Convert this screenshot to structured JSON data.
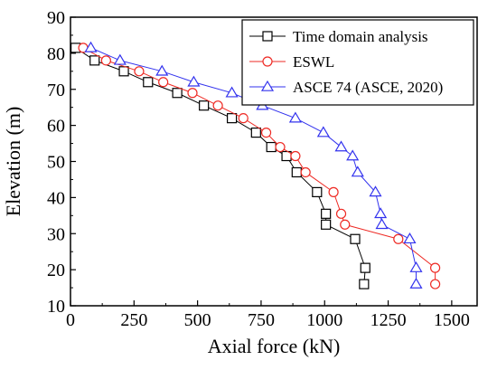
{
  "chart_data": {
    "type": "line",
    "xlabel": "Axial force (kN)",
    "ylabel": "Elevation (m)",
    "xlim": [
      0,
      1600
    ],
    "ylim": [
      10,
      90
    ],
    "xticks": [
      0,
      250,
      500,
      750,
      1000,
      1250,
      1500
    ],
    "yticks": [
      10,
      20,
      30,
      40,
      50,
      60,
      70,
      80,
      90
    ],
    "legend_position": "top-right",
    "grid": false,
    "series": [
      {
        "name": "Time domain analysis",
        "color": "#000000",
        "marker": "square",
        "points": [
          [
            20,
            81.5
          ],
          [
            95,
            78
          ],
          [
            210,
            75
          ],
          [
            305,
            72
          ],
          [
            420,
            69
          ],
          [
            525,
            65.5
          ],
          [
            635,
            62
          ],
          [
            730,
            58
          ],
          [
            790,
            54
          ],
          [
            850,
            51.5
          ],
          [
            890,
            47
          ],
          [
            970,
            41.5
          ],
          [
            1005,
            35.5
          ],
          [
            1005,
            32.5
          ],
          [
            1120,
            28.5
          ],
          [
            1160,
            20.5
          ],
          [
            1155,
            16
          ]
        ]
      },
      {
        "name": "ESWL",
        "color": "#ee2a24",
        "marker": "circle",
        "points": [
          [
            50,
            81.5
          ],
          [
            140,
            78
          ],
          [
            270,
            75
          ],
          [
            365,
            72
          ],
          [
            480,
            69
          ],
          [
            580,
            65.5
          ],
          [
            680,
            62
          ],
          [
            770,
            58
          ],
          [
            825,
            54
          ],
          [
            885,
            51.5
          ],
          [
            925,
            47
          ],
          [
            1035,
            41.5
          ],
          [
            1065,
            35.5
          ],
          [
            1080,
            32.5
          ],
          [
            1290,
            28.5
          ],
          [
            1435,
            20.5
          ],
          [
            1435,
            16
          ]
        ]
      },
      {
        "name": "ASCE 74  (ASCE, 2020)",
        "color": "#3333ee",
        "marker": "triangle",
        "points": [
          [
            80,
            81.5
          ],
          [
            195,
            78
          ],
          [
            360,
            75
          ],
          [
            485,
            72
          ],
          [
            635,
            69
          ],
          [
            755,
            65.5
          ],
          [
            885,
            62
          ],
          [
            995,
            58
          ],
          [
            1065,
            54
          ],
          [
            1110,
            51.5
          ],
          [
            1130,
            47
          ],
          [
            1200,
            41.5
          ],
          [
            1220,
            35.5
          ],
          [
            1225,
            32.5
          ],
          [
            1335,
            28.5
          ],
          [
            1360,
            20.5
          ],
          [
            1360,
            16
          ]
        ]
      }
    ]
  }
}
